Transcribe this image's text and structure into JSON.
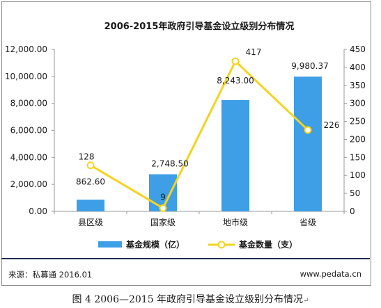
{
  "chart_data": {
    "type": "bar",
    "title": "2006-2015年政府引导基金设立级别分布情况",
    "categories": [
      "县区级",
      "国家级",
      "地市级",
      "省级"
    ],
    "series": [
      {
        "name": "基金规模（亿）",
        "type": "bar",
        "axis": "left",
        "color": "#3e9ee6",
        "values": [
          862.6,
          2748.5,
          8243.0,
          9980.37
        ],
        "labels": [
          "862.60",
          "2,748.50",
          "8,243.00",
          "9,980.37"
        ]
      },
      {
        "name": "基金数量（支）",
        "type": "line",
        "axis": "right",
        "color": "#f2d41f",
        "values": [
          128,
          9,
          417,
          226
        ],
        "labels": [
          "128",
          "9",
          "417",
          "226"
        ]
      }
    ],
    "y_left": {
      "ylim": [
        0,
        12000
      ],
      "ticks": [
        0,
        2000,
        4000,
        6000,
        8000,
        10000,
        12000
      ],
      "tick_labels": [
        "0.00",
        "2,000.00",
        "4,000.00",
        "6,000.00",
        "8,000.00",
        "10,000.00",
        "12,000.00"
      ]
    },
    "y_right": {
      "ylim": [
        0,
        450
      ],
      "ticks": [
        0,
        50,
        100,
        150,
        200,
        250,
        300,
        350,
        400,
        450
      ],
      "tick_labels": [
        "0",
        "50",
        "100",
        "150",
        "200",
        "250",
        "300",
        "350",
        "400",
        "450"
      ]
    },
    "legend_position": "bottom",
    "grid": false
  },
  "footer": {
    "source": "来源：私募通 2016.01",
    "website": "www.pedata.cn"
  },
  "caption": {
    "text": "图 4 2006—2015 年政府引导基金设立级别分布情况",
    "mark": "↵"
  }
}
